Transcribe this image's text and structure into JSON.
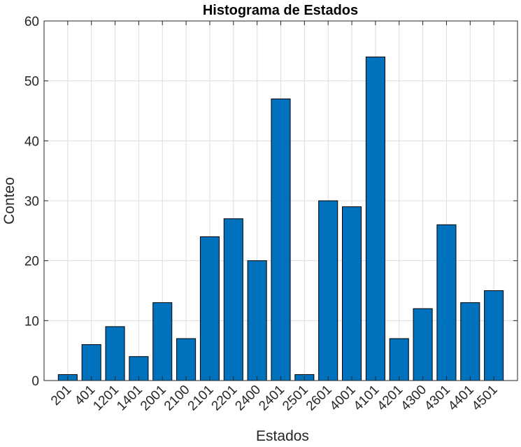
{
  "chart_data": {
    "type": "bar",
    "title": "Histograma de Estados",
    "xlabel": "Estados",
    "ylabel": "Conteo",
    "categories": [
      "201",
      "401",
      "1201",
      "1401",
      "2001",
      "2100",
      "2101",
      "2201",
      "2400",
      "2401",
      "2501",
      "2601",
      "4001",
      "4101",
      "4201",
      "4300",
      "4301",
      "4401",
      "4501"
    ],
    "values": [
      1,
      6,
      9,
      4,
      13,
      7,
      24,
      27,
      20,
      47,
      1,
      30,
      29,
      54,
      7,
      12,
      26,
      13,
      15
    ],
    "ylim": [
      0,
      60
    ],
    "yticks": [
      "0",
      "10",
      "20",
      "30",
      "40",
      "50",
      "60"
    ],
    "grid": true,
    "legend": "none",
    "colors": {
      "bar_fill": "#0072BD",
      "bar_edge": "#000000",
      "grid": "#dcdcdc",
      "axis": "#262626"
    }
  }
}
